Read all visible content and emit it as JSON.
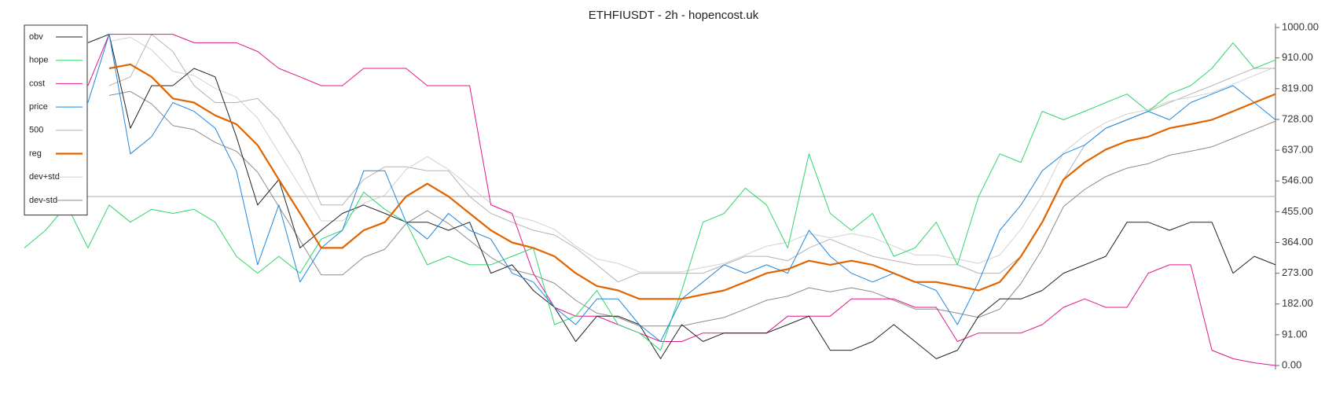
{
  "chart_data": {
    "type": "line",
    "title": "ETHFIUSDT - 2h - hopencost.uk",
    "ylim": [
      0,
      1000
    ],
    "yticks": [
      {
        "value": 0,
        "label": "0.00"
      },
      {
        "value": 91,
        "label": "91.00"
      },
      {
        "value": 182,
        "label": "182.00"
      },
      {
        "value": 273,
        "label": "273.00"
      },
      {
        "value": 364,
        "label": "364.00"
      },
      {
        "value": 455,
        "label": "455.00"
      },
      {
        "value": 546,
        "label": "546.00"
      },
      {
        "value": 637,
        "label": "637.00"
      },
      {
        "value": 728,
        "label": "728.00"
      },
      {
        "value": 819,
        "label": "819.00"
      },
      {
        "value": 910,
        "label": "910.00"
      },
      {
        "value": 1000,
        "label": "1000.00"
      }
    ],
    "reference_line": 500,
    "legend": "upper-left",
    "series": [
      {
        "name": "obv",
        "color": "#222222",
        "width": 1,
        "values": [
          null,
          null,
          null,
          955,
          980,
          702,
          828,
          828,
          879,
          854,
          677,
          475,
          550,
          348,
          400,
          450,
          475,
          450,
          424,
          424,
          400,
          424,
          273,
          298,
          222,
          172,
          71,
          146,
          146,
          121,
          20,
          121,
          71,
          96,
          96,
          96,
          121,
          146,
          45,
          45,
          71,
          121,
          71,
          20,
          45,
          146,
          197,
          197,
          222,
          273,
          298,
          323,
          424,
          424,
          400,
          424,
          424,
          273,
          323,
          298
        ]
      },
      {
        "name": "hope",
        "color": "#2fd66b",
        "width": 1,
        "values": [
          348,
          400,
          475,
          348,
          475,
          424,
          462,
          450,
          462,
          424,
          323,
          273,
          323,
          273,
          374,
          400,
          513,
          462,
          424,
          298,
          323,
          298,
          298,
          323,
          348,
          121,
          146,
          222,
          121,
          96,
          45,
          222,
          424,
          450,
          525,
          475,
          348,
          626,
          450,
          400,
          450,
          323,
          348,
          424,
          298,
          500,
          626,
          601,
          752,
          727,
          752,
          778,
          803,
          752,
          803,
          828,
          879,
          955,
          879,
          904
        ]
      },
      {
        "name": "cost",
        "color": "#e0188a",
        "width": 1,
        "values": [
          null,
          null,
          null,
          828,
          980,
          980,
          980,
          980,
          955,
          955,
          955,
          929,
          879,
          854,
          828,
          828,
          879,
          879,
          879,
          828,
          828,
          828,
          475,
          450,
          273,
          172,
          146,
          146,
          121,
          96,
          71,
          71,
          96,
          96,
          96,
          96,
          146,
          146,
          146,
          197,
          197,
          197,
          172,
          172,
          71,
          96,
          96,
          96,
          121,
          172,
          197,
          172,
          172,
          273,
          298,
          298,
          45,
          20,
          8,
          0
        ]
      },
      {
        "name": "price",
        "color": "#1f88e0",
        "width": 1,
        "values": [
          null,
          null,
          null,
          778,
          980,
          626,
          677,
          778,
          752,
          702,
          576,
          298,
          475,
          247,
          348,
          400,
          576,
          576,
          424,
          374,
          450,
          400,
          374,
          273,
          247,
          172,
          121,
          197,
          197,
          121,
          71,
          197,
          247,
          298,
          273,
          298,
          273,
          400,
          323,
          273,
          247,
          273,
          247,
          222,
          121,
          247,
          400,
          475,
          576,
          626,
          652,
          702,
          727,
          752,
          727,
          778,
          803,
          828,
          778,
          727
        ]
      },
      {
        "name": "500",
        "color": "#b4b4b4",
        "width": 1,
        "values": [
          null,
          null,
          null,
          null,
          828,
          854,
          980,
          929,
          828,
          778,
          778,
          790,
          727,
          626,
          475,
          475,
          550,
          588,
          588,
          576,
          576,
          500,
          450,
          424,
          400,
          386,
          348,
          298,
          247,
          273,
          273,
          273,
          273,
          298,
          323,
          323,
          310,
          348,
          374,
          348,
          323,
          310,
          298,
          298,
          298,
          273,
          273,
          323,
          424,
          550,
          652,
          702,
          727,
          752,
          778,
          803,
          828,
          854,
          879,
          879
        ]
      },
      {
        "name": "reg",
        "color": "#e06400",
        "width": 2.2,
        "values": [
          null,
          null,
          null,
          null,
          879,
          891,
          854,
          790,
          778,
          740,
          714,
          652,
          550,
          450,
          348,
          348,
          400,
          424,
          500,
          538,
          500,
          450,
          400,
          364,
          348,
          323,
          273,
          235,
          222,
          197,
          197,
          197,
          210,
          222,
          247,
          273,
          285,
          310,
          298,
          310,
          298,
          273,
          247,
          247,
          235,
          222,
          247,
          323,
          424,
          550,
          601,
          639,
          664,
          677,
          702,
          714,
          727,
          752,
          778,
          803
        ]
      },
      {
        "name": "dev+std",
        "color": "#d2d2d2",
        "width": 1,
        "values": [
          null,
          null,
          null,
          null,
          959,
          971,
          934,
          870,
          858,
          820,
          794,
          732,
          630,
          530,
          428,
          428,
          480,
          504,
          580,
          618,
          580,
          530,
          480,
          444,
          428,
          403,
          353,
          315,
          302,
          277,
          277,
          277,
          290,
          302,
          327,
          353,
          365,
          390,
          378,
          390,
          378,
          353,
          327,
          327,
          315,
          302,
          327,
          403,
          504,
          630,
          681,
          719,
          744,
          757,
          782,
          794,
          807,
          832,
          858,
          883
        ]
      },
      {
        "name": "dev-std",
        "color": "#8c8c8c",
        "width": 1,
        "values": [
          null,
          null,
          null,
          null,
          799,
          811,
          774,
          710,
          698,
          660,
          634,
          572,
          470,
          370,
          268,
          268,
          320,
          344,
          420,
          458,
          420,
          370,
          320,
          284,
          268,
          243,
          193,
          155,
          142,
          117,
          117,
          117,
          130,
          142,
          167,
          193,
          205,
          230,
          218,
          230,
          218,
          193,
          167,
          167,
          155,
          142,
          167,
          243,
          344,
          470,
          521,
          559,
          584,
          597,
          622,
          634,
          647,
          672,
          698,
          723
        ]
      }
    ]
  }
}
